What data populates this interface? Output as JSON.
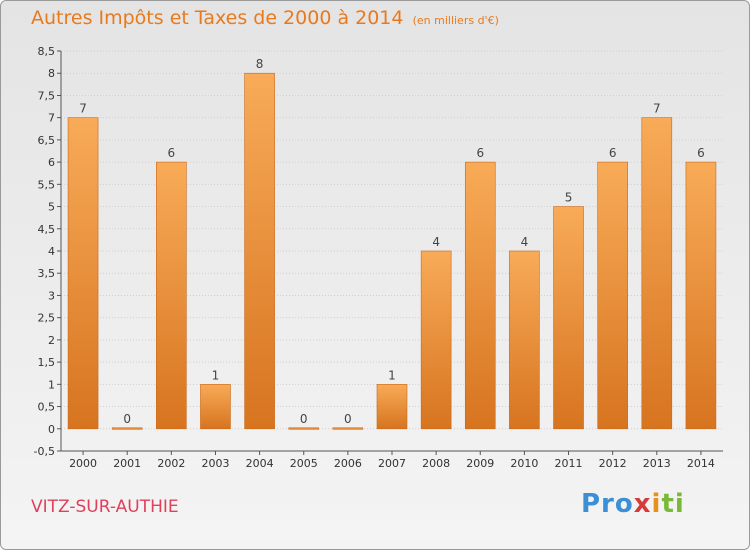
{
  "header": {
    "title": "Autres Impôts et Taxes de 2000 à 2014",
    "unit": "(en milliers d'€)"
  },
  "footer": {
    "town": "VITZ-SUR-AUTHIE",
    "logo": [
      "Pro",
      "x",
      "i",
      "ti"
    ]
  },
  "colors": {
    "title": "#e87a1e",
    "bar_light": "#f8ab58",
    "bar_dark": "#d77420",
    "town": "#e0405a"
  },
  "chart_data": {
    "type": "bar",
    "title": "Autres Impôts et Taxes de 2000 à 2014",
    "unit": "(en milliers d'€)",
    "categories": [
      "2000",
      "2001",
      "2002",
      "2003",
      "2004",
      "2005",
      "2006",
      "2007",
      "2008",
      "2009",
      "2010",
      "2011",
      "2012",
      "2013",
      "2014"
    ],
    "values": [
      7,
      0,
      6,
      1,
      8,
      0,
      0,
      1,
      4,
      6,
      4,
      5,
      6,
      7,
      6
    ],
    "ylim": [
      -0.5,
      8.5
    ],
    "yticks": [
      -0.5,
      0,
      0.5,
      1,
      1.5,
      2,
      2.5,
      3,
      3.5,
      4,
      4.5,
      5,
      5.5,
      6,
      6.5,
      7,
      7.5,
      8,
      8.5
    ],
    "ytick_labels": [
      "-0,5",
      "0",
      "0,5",
      "1",
      "1,5",
      "2",
      "2,5",
      "3",
      "3,5",
      "4",
      "4,5",
      "5",
      "5,5",
      "6",
      "6,5",
      "7",
      "7,5",
      "8",
      "8,5"
    ],
    "grid": true,
    "grid_axis": "y"
  }
}
